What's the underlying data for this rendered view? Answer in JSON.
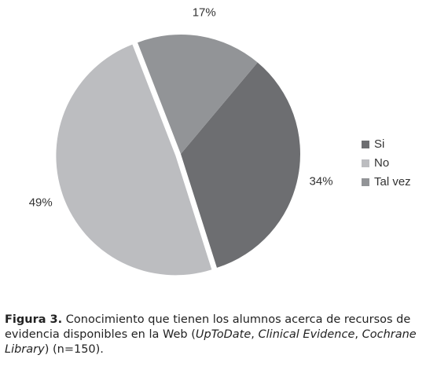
{
  "chart_data": {
    "type": "pie",
    "categories": [
      "Si",
      "No",
      "Tal vez"
    ],
    "values": [
      34,
      49,
      17
    ],
    "value_labels": [
      "34%",
      "49%",
      "17%"
    ],
    "colors": [
      "#6d6e71",
      "#bcbdc0",
      "#929497"
    ],
    "legend": "right"
  },
  "caption": {
    "label": "Figura 3.",
    "parts": [
      "Conocimiento que tienen los alumnos acerca de recursos de evidencia disponibles en la Web (",
      "UpToDate",
      ", ",
      "Clinical Evidence",
      ", ",
      "Cochrane Library",
      ") (n=150)."
    ]
  }
}
